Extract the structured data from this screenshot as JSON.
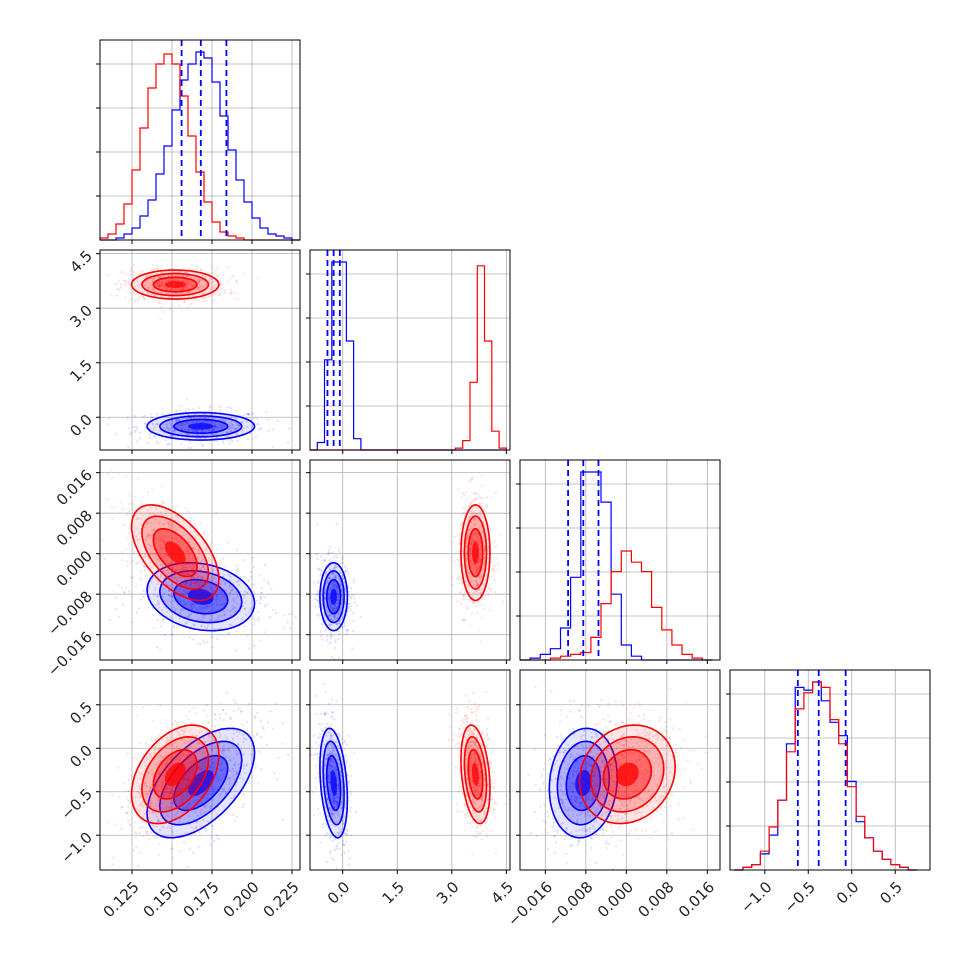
{
  "chart_data": {
    "type": "corner",
    "colors": {
      "series_a": "#0000ff",
      "series_b": "#ff0000"
    },
    "grid": true,
    "parameters": [
      {
        "range": [
          0.105,
          0.23
        ],
        "ticks": [
          0.125,
          0.15,
          0.175,
          0.2,
          0.225
        ],
        "tick_labels": [
          "0.125",
          "0.150",
          "0.175",
          "0.200",
          "0.225"
        ]
      },
      {
        "range": [
          -0.9,
          4.6
        ],
        "ticks": [
          0.0,
          1.5,
          3.0,
          4.5
        ],
        "tick_labels": [
          "0.0",
          "1.5",
          "3.0",
          "4.5"
        ]
      },
      {
        "range": [
          -0.021,
          0.0185
        ],
        "ticks": [
          -0.016,
          -0.008,
          0.0,
          0.008,
          0.016
        ],
        "tick_labels": [
          "−0.016",
          "−0.008",
          "0.000",
          "0.008",
          "0.016"
        ]
      },
      {
        "range": [
          -1.4,
          0.9
        ],
        "ticks": [
          -1.0,
          -0.5,
          0.0,
          0.5
        ],
        "tick_labels": [
          "−1.0",
          "−0.5",
          "0.0",
          "0.5"
        ]
      }
    ],
    "series": [
      {
        "color": "#0000ff",
        "mean": [
          0.168,
          -0.25,
          -0.0085,
          -0.4
        ],
        "std": [
          0.016,
          0.18,
          0.0032,
          0.3
        ],
        "quantiles": [
          [
            0.156,
            0.168,
            0.184
          ],
          [
            -0.42,
            -0.25,
            -0.08
          ],
          [
            -0.0115,
            -0.0085,
            -0.0055
          ],
          [
            -0.62,
            -0.38,
            -0.07
          ]
        ],
        "corr": {
          "0-1": 0.0,
          "0-2": -0.2,
          "0-3": 0.55,
          "1-2": 0.0,
          "1-3": -0.3,
          "2-3": 0.1
        }
      },
      {
        "color": "#ff0000",
        "mean": [
          0.152,
          3.65,
          0.0002,
          -0.3
        ],
        "std": [
          0.013,
          0.19,
          0.0045,
          0.27
        ],
        "quantiles": [],
        "corr": {
          "0-1": 0.0,
          "0-2": -0.55,
          "0-3": 0.4,
          "1-2": 0.0,
          "1-3": -0.3,
          "2-3": 0.15
        }
      }
    ],
    "histograms": [
      {
        "param": 0,
        "bin_edges": [
          0.105,
          0.11,
          0.115,
          0.12,
          0.125,
          0.13,
          0.135,
          0.14,
          0.145,
          0.15,
          0.155,
          0.16,
          0.165,
          0.17,
          0.175,
          0.18,
          0.185,
          0.19,
          0.195,
          0.2,
          0.205,
          0.21,
          0.215,
          0.22,
          0.225,
          0.23
        ],
        "counts": [
          [
            0,
            0,
            1,
            3,
            6,
            12,
            20,
            33,
            47,
            65,
            80,
            88,
            94,
            91,
            79,
            62,
            45,
            30,
            19,
            11,
            6,
            3,
            2,
            1,
            0
          ],
          [
            1,
            3,
            8,
            18,
            35,
            56,
            76,
            88,
            93,
            88,
            72,
            52,
            34,
            19,
            9,
            4,
            2,
            1,
            0,
            0,
            0,
            0,
            0,
            0,
            0
          ]
        ]
      },
      {
        "param": 1,
        "bin_edges": [
          -0.9,
          -0.7,
          -0.5,
          -0.3,
          -0.1,
          0.1,
          0.3,
          0.5,
          0.7,
          0.9,
          1.1,
          1.3,
          1.5,
          1.7,
          1.9,
          2.1,
          2.3,
          2.5,
          2.7,
          2.9,
          3.1,
          3.3,
          3.5,
          3.7,
          3.9,
          4.1,
          4.3,
          4.5
        ],
        "counts": [
          [
            0,
            4,
            48,
            100,
            100,
            58,
            6,
            0,
            0,
            0,
            0,
            0,
            0,
            0,
            0,
            0,
            0,
            0,
            0,
            0,
            0,
            0,
            0,
            0,
            0,
            0,
            0
          ],
          [
            0,
            0,
            0,
            0,
            0,
            0,
            0,
            0,
            0,
            0,
            0,
            0,
            0,
            0,
            0,
            0,
            0,
            0,
            0,
            0,
            1,
            5,
            36,
            98,
            58,
            10,
            1
          ]
        ]
      },
      {
        "param": 2,
        "bin_edges": [
          -0.021,
          -0.019,
          -0.017,
          -0.015,
          -0.013,
          -0.011,
          -0.009,
          -0.007,
          -0.005,
          -0.003,
          -0.001,
          0.001,
          0.003,
          0.005,
          0.007,
          0.009,
          0.011,
          0.013,
          0.015,
          0.017
        ],
        "counts": [
          [
            0,
            1,
            3,
            6,
            17,
            44,
            100,
            100,
            84,
            35,
            8,
            2,
            0,
            0,
            0,
            0,
            0,
            0,
            0
          ],
          [
            0,
            0,
            0,
            1,
            2,
            3,
            4,
            12,
            30,
            47,
            58,
            52,
            47,
            28,
            16,
            8,
            3,
            1,
            0
          ]
        ]
      },
      {
        "param": 3,
        "bin_edges": [
          -1.35,
          -1.25,
          -1.15,
          -1.05,
          -0.95,
          -0.85,
          -0.75,
          -0.65,
          -0.55,
          -0.45,
          -0.35,
          -0.25,
          -0.15,
          -0.05,
          0.05,
          0.15,
          0.25,
          0.35,
          0.45,
          0.55,
          0.65,
          0.75
        ],
        "counts": [
          [
            0,
            1,
            2,
            6,
            13,
            26,
            47,
            68,
            67,
            70,
            63,
            55,
            50,
            33,
            18,
            12,
            7,
            4,
            2,
            1,
            0
          ],
          [
            0,
            1,
            2,
            7,
            16,
            26,
            44,
            60,
            66,
            70,
            68,
            56,
            47,
            31,
            20,
            12,
            7,
            4,
            2,
            1,
            0
          ]
        ]
      }
    ]
  }
}
